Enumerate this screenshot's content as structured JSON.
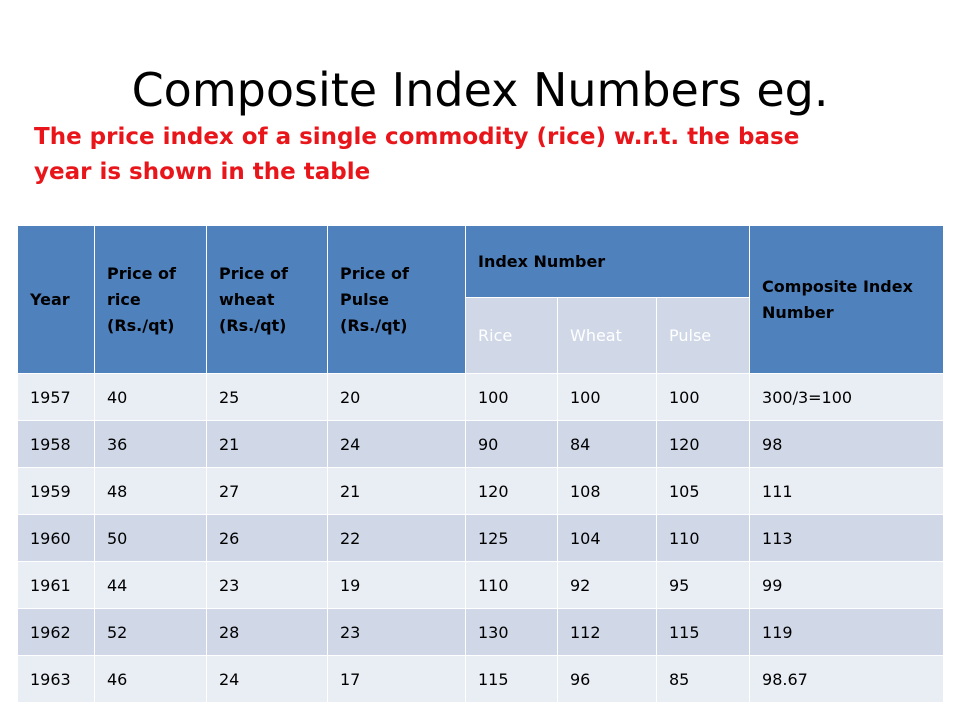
{
  "title": "Composite Index Numbers eg.",
  "subtitle_line1": "The price index of a single commodity (rice) w.r.t. the base",
  "subtitle_line2": "year is shown in the table",
  "headers": {
    "year": "Year",
    "rice_price": [
      "Price of",
      "rice",
      "(Rs./qt)"
    ],
    "wheat_price": [
      "Price of",
      "wheat",
      "(Rs./qt)"
    ],
    "pulse_price": [
      "Price of",
      "Pulse",
      "(Rs./qt)"
    ],
    "index_number": "Index Number",
    "composite": [
      "Composite Index",
      "Number"
    ],
    "sub_rice": "Rice",
    "sub_wheat": "Wheat",
    "sub_pulse": "Pulse"
  },
  "rows": [
    [
      "1957",
      "40",
      "25",
      "20",
      "100",
      "100",
      "100",
      "300/3=100"
    ],
    [
      "1958",
      "36",
      "21",
      "24",
      "90",
      "84",
      "120",
      "98"
    ],
    [
      "1959",
      "48",
      "27",
      "21",
      "120",
      "108",
      "105",
      "111"
    ],
    [
      "1960",
      "50",
      "26",
      "22",
      "125",
      "104",
      "110",
      "113"
    ],
    [
      "1961",
      "44",
      "23",
      "19",
      "110",
      "92",
      "95",
      "99"
    ],
    [
      "1962",
      "52",
      "28",
      "23",
      "130",
      "112",
      "115",
      "119"
    ],
    [
      "1963",
      "46",
      "24",
      "17",
      "115",
      "96",
      "85",
      "98.67"
    ]
  ],
  "colors": {
    "header": "#4f81bd",
    "row_light": "#e9edf4",
    "row_dark": "#d0d8e8",
    "accent_red": "#e8161b"
  }
}
